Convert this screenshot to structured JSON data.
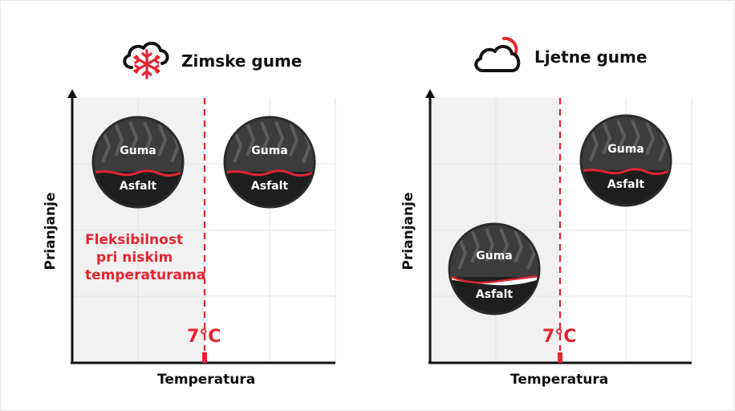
{
  "winter": {
    "title": "Zimske gume",
    "icon": "cloud-snowflake-icon",
    "ylabel": "Prianjanje",
    "xlabel": "Temperatura",
    "temp_marker": "7°C",
    "flex_text": [
      "Fleksibilnost",
      "pri niskim",
      "temperaturama"
    ],
    "tires": [
      {
        "tire_label": "Guma",
        "road_label": "Asfalt"
      },
      {
        "tire_label": "Guma",
        "road_label": "Asfalt"
      }
    ]
  },
  "summer": {
    "title": "Ljetne gume",
    "icon": "cloud-sun-icon",
    "ylabel": "Prianjanje",
    "xlabel": "Temperatura",
    "temp_marker": "7°C",
    "tires": [
      {
        "tire_label": "Guma",
        "road_label": "Asfalt"
      },
      {
        "tire_label": "Guma",
        "road_label": "Asfalt"
      }
    ]
  },
  "colors": {
    "accent_red": "#e3252f",
    "shade": "#f1f1f1",
    "grid": "#e3e3e3",
    "tire_dark": "#3c3c3c",
    "tire_tread": "#5a5a5a",
    "road": "#1e1e1e"
  }
}
